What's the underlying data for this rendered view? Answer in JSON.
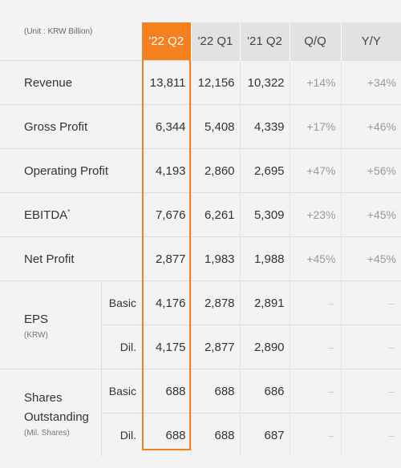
{
  "header": {
    "unit": "(Unit : KRW Billion)",
    "cols": [
      "'22 Q2",
      "'22 Q1",
      "'21 Q2",
      "Q/Q",
      "Y/Y"
    ]
  },
  "rows": [
    {
      "label": "Revenue",
      "values": [
        "13,811",
        "12,156",
        "10,322",
        "+14%",
        "+34%"
      ]
    },
    {
      "label": "Gross Profit",
      "values": [
        "6,344",
        "5,408",
        "4,339",
        "+17%",
        "+46%"
      ]
    },
    {
      "label": "Operating Profit",
      "values": [
        "4,193",
        "2,860",
        "2,695",
        "+47%",
        "+56%"
      ]
    },
    {
      "label": "EBITDA",
      "label_mark": "*",
      "values": [
        "7,676",
        "6,261",
        "5,309",
        "+23%",
        "+45%"
      ]
    },
    {
      "label": "Net Profit",
      "values": [
        "2,877",
        "1,983",
        "1,988",
        "+45%",
        "+45%"
      ]
    }
  ],
  "eps": {
    "title": "EPS",
    "unit": "(KRW)",
    "rows": [
      {
        "sub": "Basic",
        "values": [
          "4,176",
          "2,878",
          "2,891",
          "–",
          "–"
        ]
      },
      {
        "sub": "Dil.",
        "values": [
          "4,175",
          "2,877",
          "2,890",
          "–",
          "–"
        ]
      }
    ]
  },
  "shares": {
    "title_line1": "Shares",
    "title_line2": "Outstanding",
    "unit": "(Mil. Shares)",
    "rows": [
      {
        "sub": "Basic",
        "values": [
          "688",
          "688",
          "686",
          "–",
          "–"
        ]
      },
      {
        "sub": "Dil.",
        "values": [
          "688",
          "688",
          "687",
          "–",
          "–"
        ]
      }
    ]
  },
  "colors": {
    "accent": "#f5801f",
    "header_gray": "#e2e2e2",
    "background": "#f3f3f3"
  }
}
